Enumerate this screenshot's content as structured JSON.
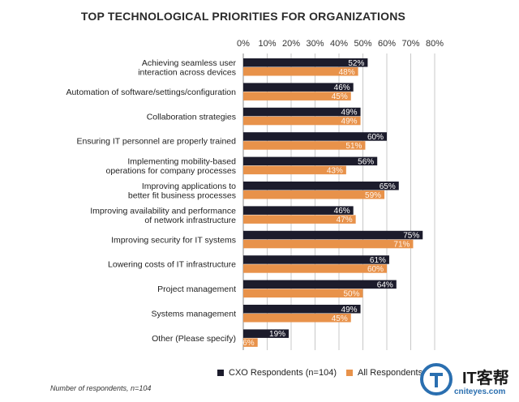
{
  "chart_data": {
    "type": "bar",
    "orientation": "horizontal",
    "title": "TOP TECHNOLOGICAL PRIORITIES FOR ORGANIZATIONS",
    "x_ticks": [
      "0%",
      "10%",
      "20%",
      "30%",
      "40%",
      "50%",
      "60%",
      "70%",
      "80%"
    ],
    "xlim": [
      0,
      80
    ],
    "categories": [
      [
        "Achieving seamless user",
        "interaction across devices"
      ],
      [
        "Automation of software/settings/configuration"
      ],
      [
        "Collaboration strategies"
      ],
      [
        "Ensuring IT personnel are properly trained"
      ],
      [
        "Implementing mobility-based",
        "operations for company processes"
      ],
      [
        "Improving applications to",
        "better fit business processes"
      ],
      [
        "Improving availability and performance",
        "of network infrastructure"
      ],
      [
        "Improving security for IT systems"
      ],
      [
        "Lowering costs of IT infrastructure"
      ],
      [
        "Project management"
      ],
      [
        "Systems management"
      ],
      [
        "Other (Please specify)"
      ]
    ],
    "series": [
      {
        "name": "CXO Respondents (n=104)",
        "color": "#1c1c2c",
        "values": [
          52,
          46,
          49,
          60,
          56,
          65,
          46,
          75,
          61,
          64,
          49,
          19
        ]
      },
      {
        "name": "All Respondents",
        "color": "#e8924a",
        "values": [
          48,
          45,
          49,
          51,
          43,
          59,
          47,
          71,
          60,
          50,
          45,
          6
        ]
      }
    ],
    "grid": true,
    "legend": "bottom"
  },
  "legend": {
    "cxo_label": "CXO Respondents (n=104)",
    "all_label": "All Respondents"
  },
  "footnote": "Number of respondents, n=104",
  "watermark": {
    "brand": "IT客帮",
    "site": "cniteyes.com"
  }
}
